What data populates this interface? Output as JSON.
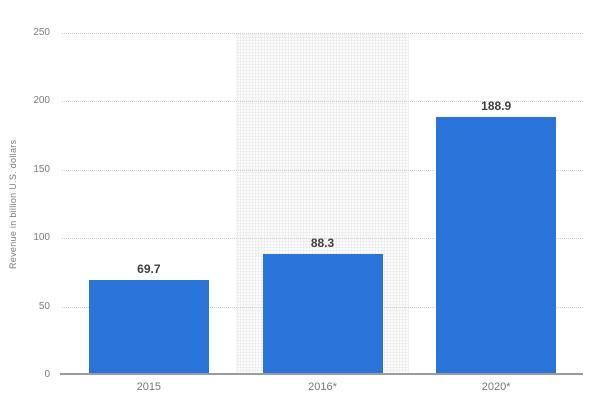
{
  "chart_data": {
    "type": "bar",
    "title": "",
    "xlabel": "",
    "ylabel": "Revenue in billion U.S. dollars",
    "categories": [
      "2015",
      "2016*",
      "2020*"
    ],
    "values": [
      69.7,
      88.3,
      188.9
    ],
    "value_labels": [
      "69.7",
      "88.3",
      "188.9"
    ],
    "ylim": [
      0,
      250
    ],
    "yticks": [
      0,
      50,
      100,
      150,
      200,
      250
    ],
    "grid": "horizontal-dotted",
    "legend": "none",
    "highlighted_category": "2016*",
    "highlight_index": 1,
    "colors": {
      "bar": "#2a73d9",
      "value_label": "#404040",
      "tick_text": "#7d7d7d",
      "category_text": "#777777",
      "gridline": "#cfcfcf",
      "axis_line": "#9b9b9b",
      "highlight_band": "#f5f5f5",
      "background": "#ffffff"
    }
  }
}
